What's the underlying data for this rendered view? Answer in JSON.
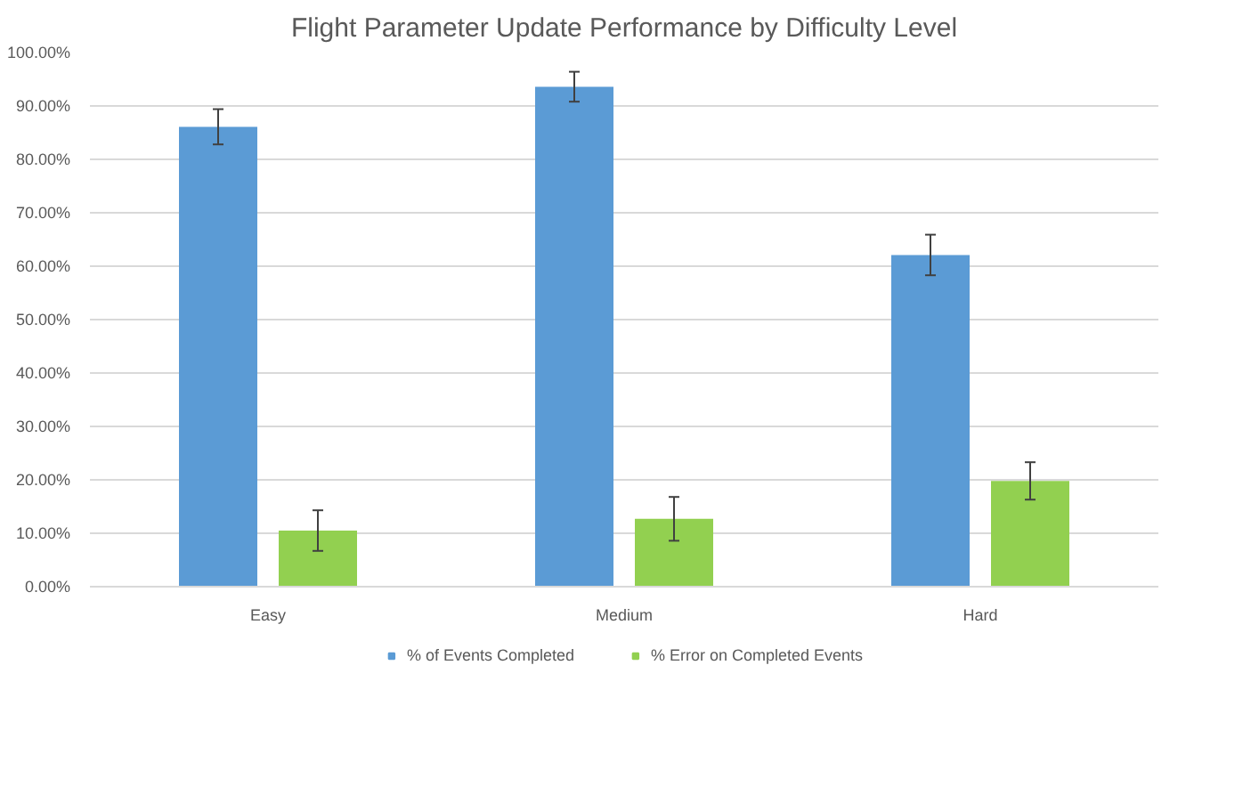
{
  "chart_data": {
    "type": "bar",
    "title": "Flight Parameter Update Performance by Difficulty Level",
    "categories": [
      "Easy",
      "Medium",
      "Hard"
    ],
    "series": [
      {
        "name": "% of Events Completed",
        "color": "#5b9bd5",
        "values": [
          86.1,
          93.6,
          62.1
        ],
        "errors": [
          3.3,
          2.8,
          3.8
        ]
      },
      {
        "name": "% Error on Completed Events",
        "color": "#92d050",
        "values": [
          10.5,
          12.7,
          19.8
        ],
        "errors": [
          3.8,
          4.1,
          3.5
        ]
      }
    ],
    "ylim": [
      0,
      100
    ],
    "yticks": [
      {
        "value": 0,
        "label": "0.00%"
      },
      {
        "value": 10,
        "label": "10.00%"
      },
      {
        "value": 20,
        "label": "20.00%"
      },
      {
        "value": 30,
        "label": "30.00%"
      },
      {
        "value": 40,
        "label": "40.00%"
      },
      {
        "value": 50,
        "label": "50.00%"
      },
      {
        "value": 60,
        "label": "60.00%"
      },
      {
        "value": 70,
        "label": "70.00%"
      },
      {
        "value": 80,
        "label": "80.00%"
      },
      {
        "value": 90,
        "label": "90.00%"
      },
      {
        "value": 100,
        "label": "100.00%"
      }
    ],
    "grid": "y",
    "legend": "bottom"
  }
}
